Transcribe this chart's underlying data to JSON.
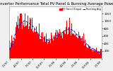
{
  "title": "Solar PV/Inverter Performance Total PV Panel & Running Average Power Output",
  "background_color": "#f0f0f0",
  "plot_bg_color": "#ffffff",
  "grid_color": "#ffffff",
  "bar_color": "#ff0000",
  "avg_line_color": "#0000ff",
  "num_points": 300,
  "x_labels": [
    "1/1/07",
    "4/1/07",
    "7/1/07",
    "10/1/07",
    "1/1/08",
    "4/1/08",
    "7/1/08",
    "10/1/08",
    "1/1/09"
  ],
  "y_ticks": [
    200,
    400,
    600,
    800,
    1000,
    1200
  ],
  "ylim": [
    0,
    1400
  ],
  "title_fontsize": 3.8,
  "tick_fontsize": 2.8,
  "xlabel_fontsize": 2.5,
  "legend_pv_label": "PV Panel Output",
  "legend_avg_label": "Running Avg",
  "legend_pv_color": "#ff0000",
  "legend_avg_color": "#0000ff",
  "avg_low": 150,
  "avg_peak": 420
}
